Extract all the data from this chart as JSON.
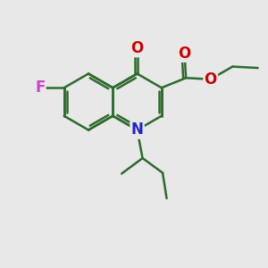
{
  "bg_color": "#e8e8e8",
  "bond_color": "#2d6b2d",
  "bond_width": 1.8,
  "atom_colors": {
    "O": "#cc0000",
    "N": "#2222cc",
    "F": "#cc44cc"
  },
  "font_size": 11.5,
  "figsize": [
    3.0,
    3.0
  ],
  "dpi": 100
}
